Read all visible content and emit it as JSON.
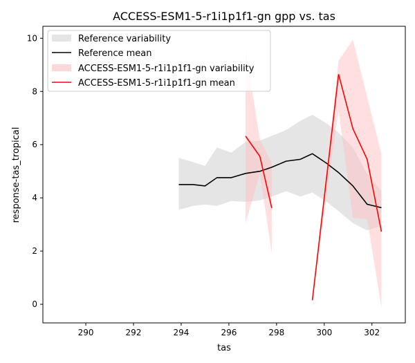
{
  "chart_data": {
    "type": "line",
    "title": "ACCESS-ESM1-5-r1i1p1f1-gn gpp vs. tas",
    "xlabel": "tas",
    "ylabel": "response-tas_tropical",
    "xlim": [
      288.2,
      303.4
    ],
    "ylim": [
      -0.7,
      10.45
    ],
    "xticks": [
      290,
      292,
      294,
      296,
      298,
      300,
      302
    ],
    "yticks": [
      0,
      2,
      4,
      6,
      8,
      10
    ],
    "grid": false,
    "legend_position": "top-left",
    "legend": [
      "Reference variability",
      "Reference mean",
      "ACCESS-ESM1-5-r1i1p1f1-gn variability",
      "ACCESS-ESM1-5-r1i1p1f1-gn mean"
    ],
    "colors": {
      "reference_band": "#d3d3d3",
      "reference_mean": "#000000",
      "model_band": "#ffc0c0",
      "model_mean": "#ff0000"
    },
    "reference": {
      "x": [
        293.9,
        294.5,
        295.0,
        295.5,
        296.1,
        296.7,
        297.3,
        297.8,
        298.4,
        299.0,
        299.5,
        300.1,
        300.6,
        301.2,
        301.8,
        302.4
      ],
      "mean": [
        4.5,
        4.5,
        4.45,
        4.76,
        4.76,
        4.92,
        5.0,
        5.15,
        5.38,
        5.45,
        5.66,
        5.3,
        4.95,
        4.45,
        3.76,
        3.63
      ],
      "upper": [
        5.5,
        5.35,
        5.2,
        5.9,
        5.7,
        6.1,
        6.15,
        6.33,
        6.55,
        6.9,
        7.12,
        6.8,
        6.45,
        5.9,
        4.9,
        4.25
      ],
      "lower": [
        3.55,
        3.7,
        3.75,
        3.7,
        3.88,
        3.85,
        3.9,
        4.05,
        4.25,
        4.05,
        4.2,
        3.85,
        3.5,
        3.05,
        2.78,
        2.95
      ]
    },
    "model_segments": [
      {
        "x": [
          296.7,
          297.3,
          297.8
        ],
        "mean": [
          6.32,
          5.56,
          3.62
        ],
        "upper": [
          9.6,
          6.2,
          5.3
        ],
        "lower": [
          3.05,
          4.9,
          1.92
        ]
      },
      {
        "x": [
          299.5,
          300.6,
          301.2,
          301.8,
          302.4
        ],
        "mean": [
          0.15,
          8.65,
          6.6,
          5.45,
          2.73
        ],
        "upper": [
          0.15,
          9.15,
          9.95,
          7.8,
          5.65
        ],
        "lower": [
          0.15,
          7.3,
          3.25,
          3.2,
          -0.12
        ]
      }
    ]
  }
}
